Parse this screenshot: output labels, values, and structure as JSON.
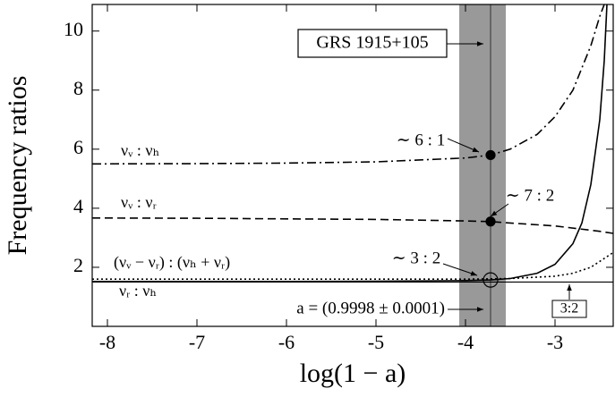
{
  "chart_data": {
    "type": "line",
    "xlabel": "log(1 − a)",
    "ylabel": "Frequency ratios",
    "xlim": [
      -8.17,
      -2.35
    ],
    "ylim": [
      0,
      10.9
    ],
    "xticks": [
      -8,
      -7,
      -6,
      -5,
      -4,
      -3
    ],
    "yticks": [
      2,
      4,
      6,
      8,
      10
    ],
    "band": [
      -4.07,
      -3.55
    ],
    "band_color": "#999999",
    "source_x": -3.72,
    "source_label": "GRS 1915+105",
    "spin_label": "a = (0.9998 ± 0.0001)",
    "reference_line": {
      "y": 1.5,
      "label": "3:2"
    },
    "series": [
      {
        "name": "νᵥ : νₕ",
        "color": "#000000",
        "dash": "10,4,2,4",
        "x": [
          -8.17,
          -7,
          -6,
          -5,
          -4,
          -3.72,
          -3.5,
          -3.2,
          -3,
          -2.8,
          -2.6,
          -2.5,
          -2.45
        ],
        "values": [
          5.5,
          5.51,
          5.53,
          5.57,
          5.7,
          5.8,
          6.0,
          6.5,
          7.1,
          8.0,
          9.5,
          10.5,
          10.9
        ]
      },
      {
        "name": "νᵥ : νᵣ",
        "color": "#000000",
        "dash": "9,5",
        "x": [
          -8.17,
          -7,
          -6,
          -5,
          -4,
          -3.72,
          -3.5,
          -3,
          -2.5,
          -2.35
        ],
        "values": [
          3.67,
          3.66,
          3.64,
          3.62,
          3.57,
          3.55,
          3.5,
          3.4,
          3.22,
          3.15
        ]
      },
      {
        "name": "(νᵥ − νᵣ) : (νₕ + νᵣ)",
        "color": "#000000",
        "dash": "2,3",
        "x": [
          -8.17,
          -6,
          -5,
          -4,
          -3.5,
          -3,
          -2.8,
          -2.6,
          -2.35
        ],
        "values": [
          1.6,
          1.6,
          1.6,
          1.6,
          1.62,
          1.7,
          1.8,
          2.0,
          2.5
        ]
      },
      {
        "name": "νᵣ : νₕ",
        "color": "#000000",
        "dash": "",
        "x": [
          -8.17,
          -6,
          -5,
          -4,
          -3.72,
          -3.5,
          -3.2,
          -3,
          -2.8,
          -2.7,
          -2.6,
          -2.5,
          -2.45,
          -2.42
        ],
        "values": [
          1.52,
          1.52,
          1.53,
          1.55,
          1.57,
          1.62,
          1.8,
          2.1,
          2.8,
          3.5,
          4.8,
          7,
          9,
          10.9
        ]
      }
    ],
    "points": [
      {
        "label": "∼ 6 : 1",
        "y": 5.8,
        "filled": true
      },
      {
        "label": "∼ 7 : 2",
        "y": 3.55,
        "filled": true
      },
      {
        "label": "∼ 3 : 2",
        "y": 1.57,
        "filled": false
      }
    ]
  }
}
